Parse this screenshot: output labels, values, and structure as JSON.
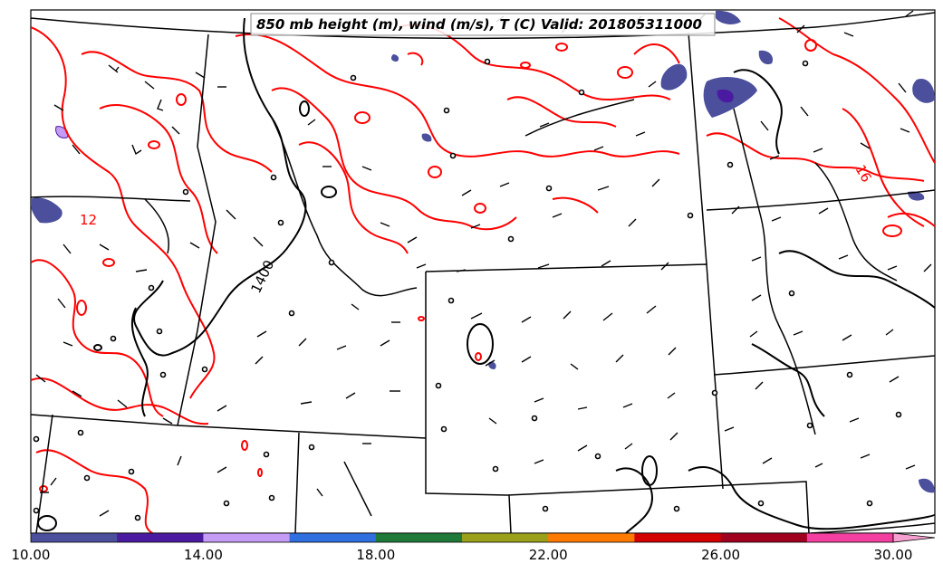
{
  "title": "850 mb height (m), wind (m/s), T (C) Valid: 201805311000",
  "colorbar": {
    "colors": [
      "#4b4f9c",
      "#4a1aa0",
      "#c49bf5",
      "#2f6fe0",
      "#1f7a3a",
      "#9aa01a",
      "#ff7a00",
      "#d40000",
      "#a0001e",
      "#f23fa0",
      "#f5a0d0"
    ],
    "tick_labels": [
      "10.00",
      "14.00",
      "18.00",
      "22.00",
      "26.00",
      "30.00"
    ]
  },
  "contour_labels": {
    "height": "1400",
    "temp_west": "12",
    "temp_east": "16"
  },
  "colors": {
    "height_contour": "#000000",
    "temp_contour": "#ff0000",
    "border": "#000000"
  }
}
